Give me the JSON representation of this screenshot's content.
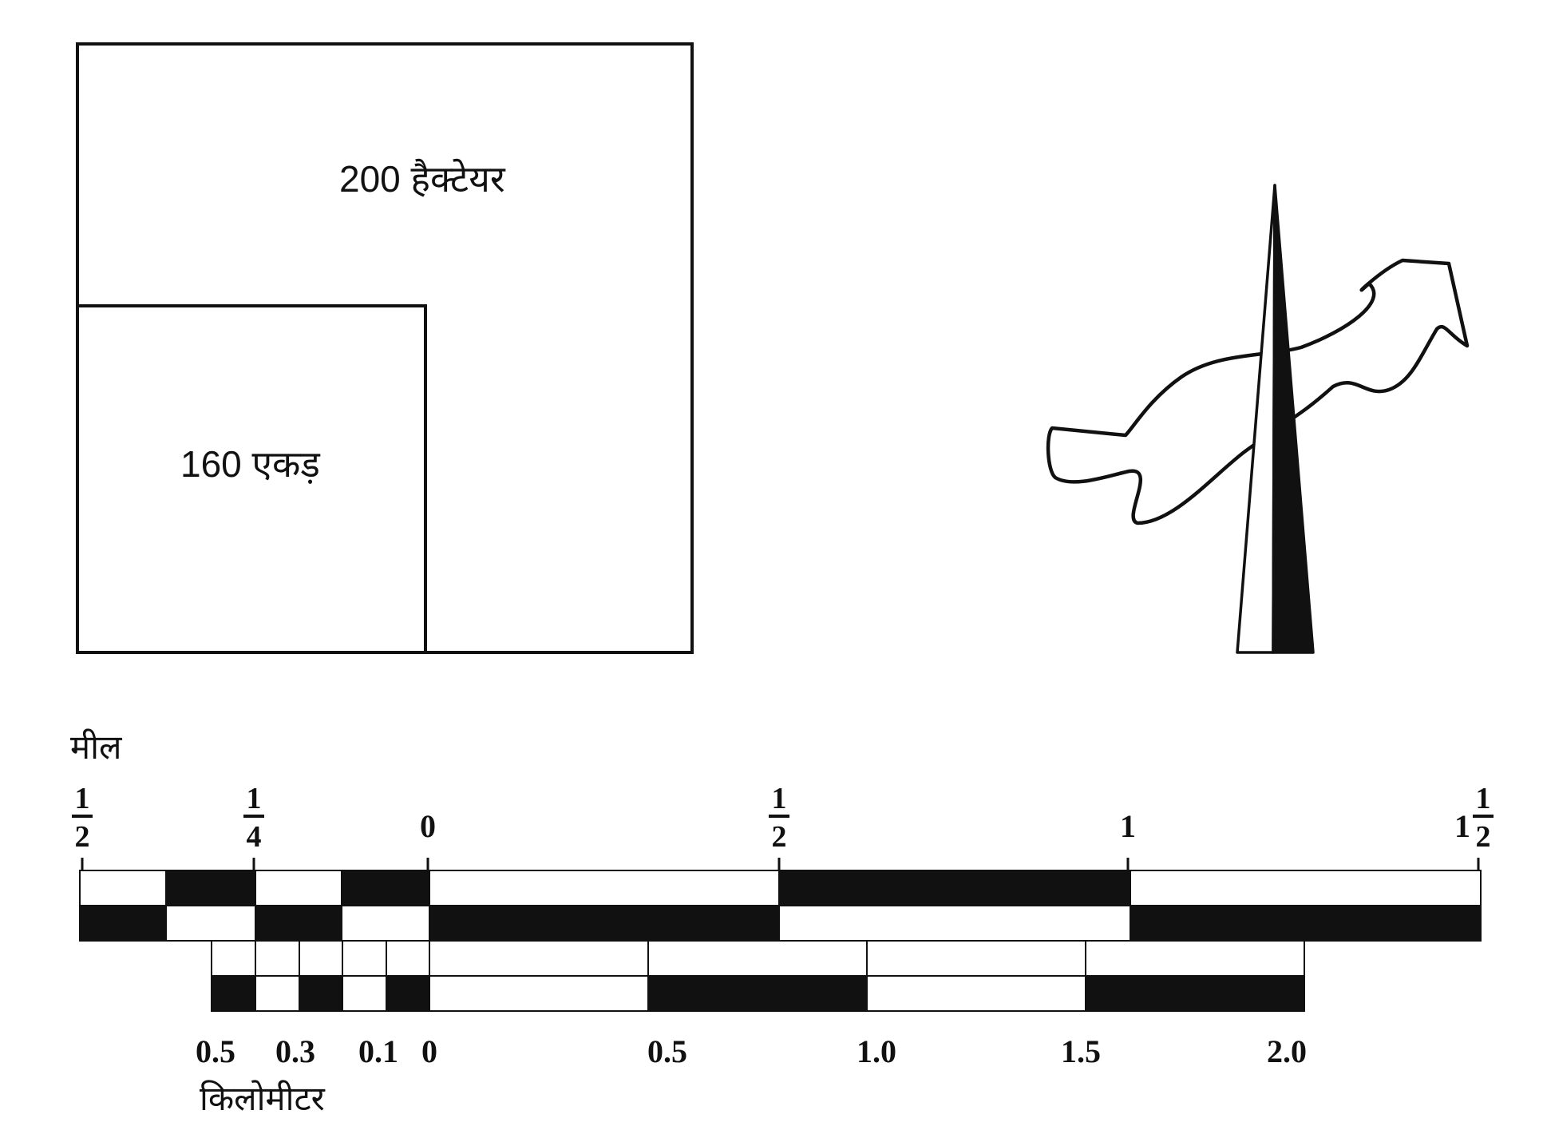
{
  "areas": {
    "large_label": "200  हैक्टेयर",
    "small_label": "160  एकड़"
  },
  "north_arrow": {
    "icon": "north-arrow-icon"
  },
  "river": {
    "icon": "river-outline-icon"
  },
  "miles_scale": {
    "title": "मील",
    "tick_labels": [
      {
        "whole": "",
        "num": "1",
        "den": "2"
      },
      {
        "whole": "",
        "num": "1",
        "den": "4"
      },
      {
        "whole": "0",
        "num": "",
        "den": ""
      },
      {
        "whole": "",
        "num": "1",
        "den": "2"
      },
      {
        "whole": "1",
        "num": "",
        "den": ""
      },
      {
        "whole": "1",
        "num": "1",
        "den": "2"
      }
    ]
  },
  "km_scale": {
    "title": "किलोमीटर",
    "tick_labels": [
      "0.5",
      "0.3",
      "0.1",
      "0",
      "0.5",
      "1.0",
      "1.5",
      "2.0"
    ]
  },
  "colors": {
    "ink": "#111111",
    "paper": "#ffffff"
  }
}
